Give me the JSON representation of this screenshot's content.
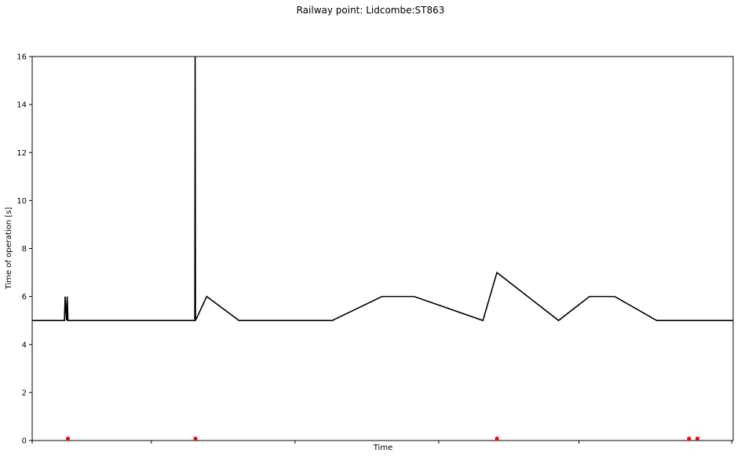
{
  "chart_data": {
    "type": "line",
    "title": "Railway point: Lidcombe:ST863",
    "xlabel": "Time",
    "ylabel": "Time of operation [s]",
    "ylim": [
      0,
      16
    ],
    "yticks": [
      0,
      2,
      4,
      6,
      8,
      10,
      12,
      14,
      16
    ],
    "xlim": [
      0,
      100
    ],
    "xticks": [
      0,
      17,
      37.5,
      58,
      78,
      99.8
    ],
    "grid": false,
    "legend": "none",
    "series": [
      {
        "kind": "line",
        "color": "#000000",
        "x": [
          0,
          4.6,
          4.7,
          4.9,
          5.0,
          5.1,
          23.2,
          23.25,
          23.3,
          24.9,
          29.5,
          42.8,
          49.9,
          54.5,
          64.3,
          66.3,
          75.1,
          79.5,
          83.1,
          89.1,
          100
        ],
        "y": [
          5,
          5,
          6,
          5,
          6,
          5,
          5,
          16,
          5,
          6,
          5,
          5,
          6,
          6,
          5,
          7,
          5,
          6,
          6,
          5,
          5
        ]
      },
      {
        "kind": "scatter",
        "color": "#ff0000",
        "x": [
          5.1,
          23.3,
          66.3,
          93.7,
          94.9
        ],
        "y": [
          0.08,
          0.08,
          0.08,
          0.08,
          0.08
        ]
      }
    ]
  }
}
